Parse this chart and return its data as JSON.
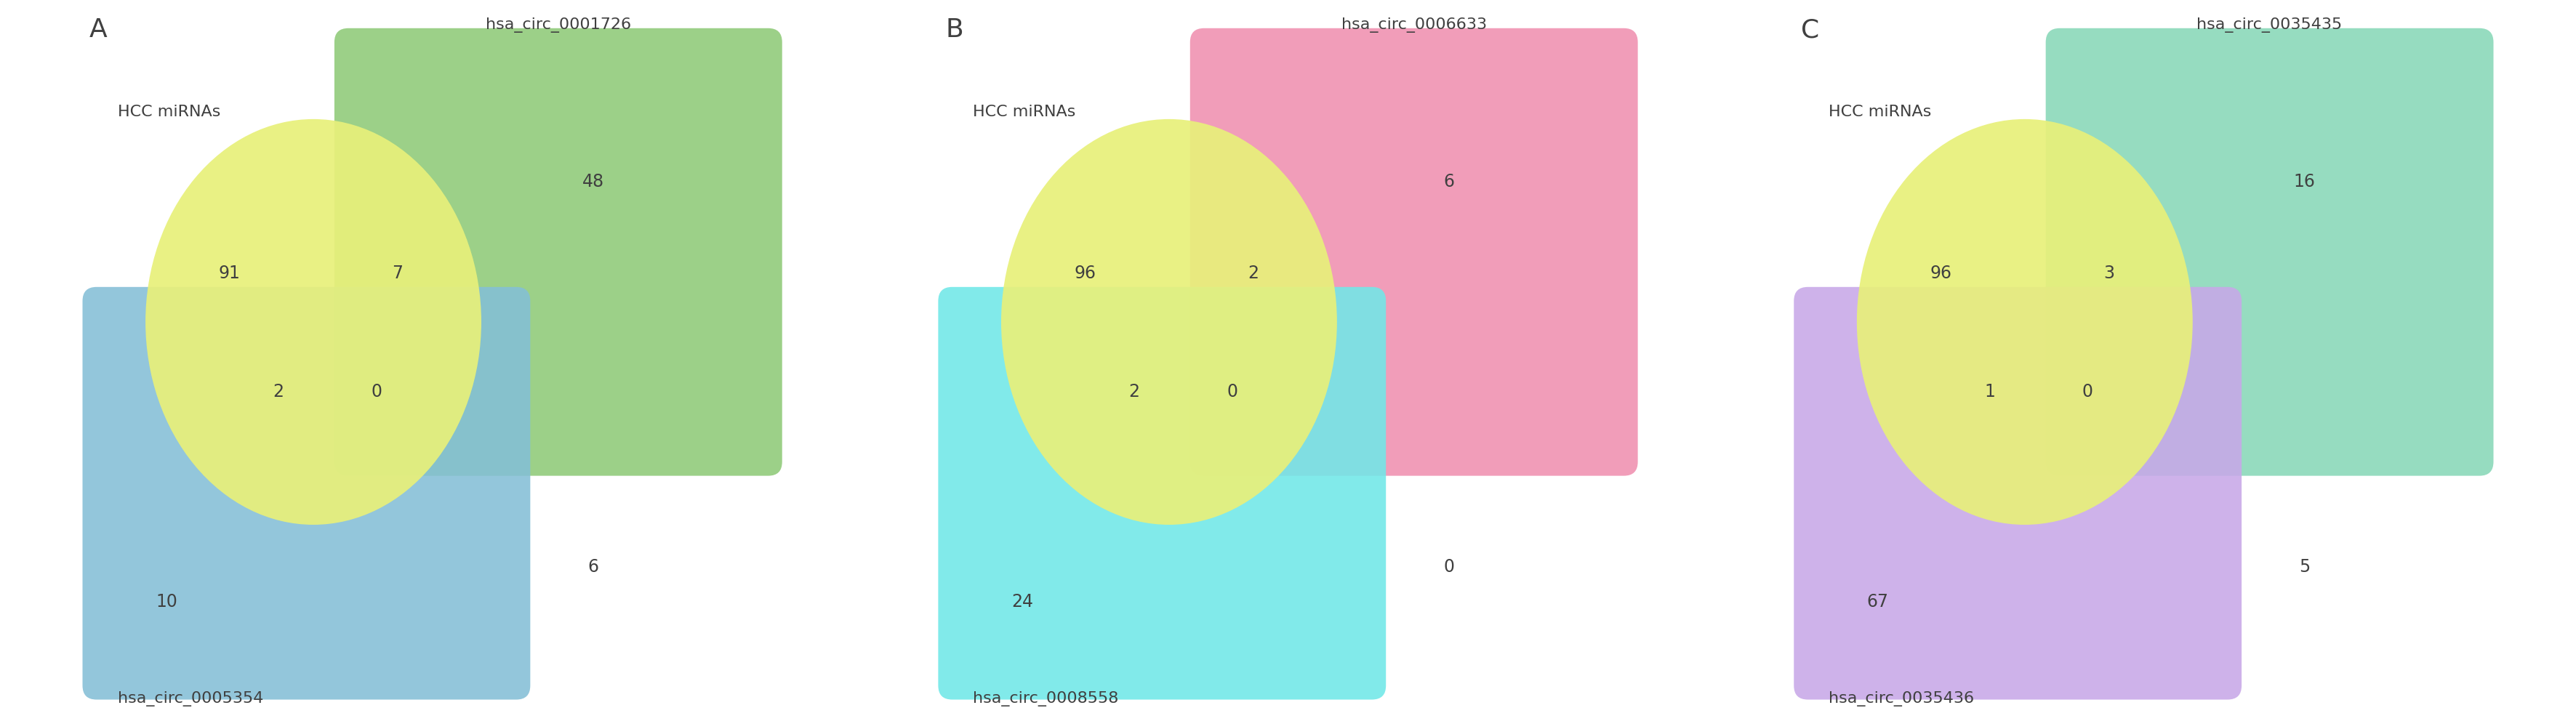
{
  "panels": [
    {
      "label": "A",
      "circ1_label": "hsa_circ_0001726",
      "circ2_label": "hsa_circ_0005354",
      "hcc_label": "HCC miRNAs",
      "rect1_color": "#8fca78",
      "rect2_color": "#84bfd6",
      "circle_color": "#e8f07a",
      "counts": {
        "hcc_only": 91,
        "circ1_only": 48,
        "circ2_only": 10,
        "hcc_circ1": 7,
        "hcc_circ2": 2,
        "circ1_circ2": 6,
        "all_three": 0
      }
    },
    {
      "label": "B",
      "circ1_label": "hsa_circ_0006633",
      "circ2_label": "hsa_circ_0008558",
      "hcc_label": "HCC miRNAs",
      "rect1_color": "#f090b0",
      "rect2_color": "#70e8e8",
      "circle_color": "#e8f07a",
      "counts": {
        "hcc_only": 96,
        "circ1_only": 6,
        "circ2_only": 24,
        "hcc_circ1": 2,
        "hcc_circ2": 2,
        "circ1_circ2": 0,
        "all_three": 0
      }
    },
    {
      "label": "C",
      "circ1_label": "hsa_circ_0035435",
      "circ2_label": "hsa_circ_0035436",
      "hcc_label": "HCC miRNAs",
      "rect1_color": "#88d8b8",
      "rect2_color": "#c8a8e8",
      "circle_color": "#e8f07a",
      "counts": {
        "hcc_only": 96,
        "circ1_only": 16,
        "circ2_only": 67,
        "hcc_circ1": 3,
        "hcc_circ2": 1,
        "circ1_circ2": 5,
        "all_three": 0
      }
    }
  ],
  "background_color": "#ffffff",
  "text_color": "#404040",
  "font_size_numbers": 17,
  "font_size_labels": 16,
  "font_size_panel": 26
}
